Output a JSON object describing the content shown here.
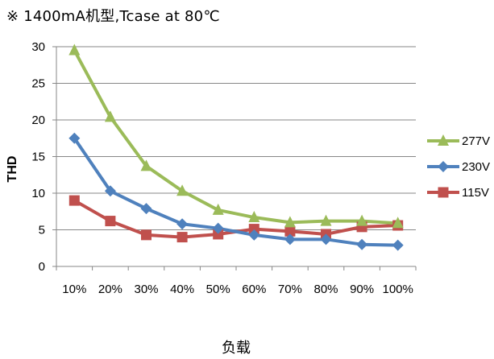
{
  "title": "※ 1400mA机型,Tcase at 80℃",
  "chart_data": {
    "type": "line",
    "title": "※ 1400mA机型,Tcase at 80℃",
    "xlabel": "负载",
    "ylabel": "THD",
    "categories": [
      "10%",
      "20%",
      "30%",
      "40%",
      "50%",
      "60%",
      "70%",
      "80%",
      "90%",
      "100%"
    ],
    "ylim": [
      0,
      30
    ],
    "yticks": [
      0,
      5,
      10,
      15,
      20,
      25,
      30
    ],
    "grid": "horizontal",
    "legend_position": "right",
    "series": [
      {
        "name": "277V",
        "color": "#9BBB59",
        "marker": "triangle",
        "values": [
          29.5,
          20.4,
          13.7,
          10.3,
          7.7,
          6.7,
          6.0,
          6.2,
          6.2,
          5.9
        ]
      },
      {
        "name": "230V",
        "color": "#4F81BD",
        "marker": "diamond",
        "values": [
          17.5,
          10.3,
          7.9,
          5.8,
          5.2,
          4.3,
          3.7,
          3.7,
          3.0,
          2.9
        ]
      },
      {
        "name": "115V",
        "color": "#C0504D",
        "marker": "square",
        "values": [
          9.0,
          6.2,
          4.3,
          4.0,
          4.4,
          5.1,
          4.8,
          4.4,
          5.4,
          5.6
        ]
      }
    ]
  }
}
